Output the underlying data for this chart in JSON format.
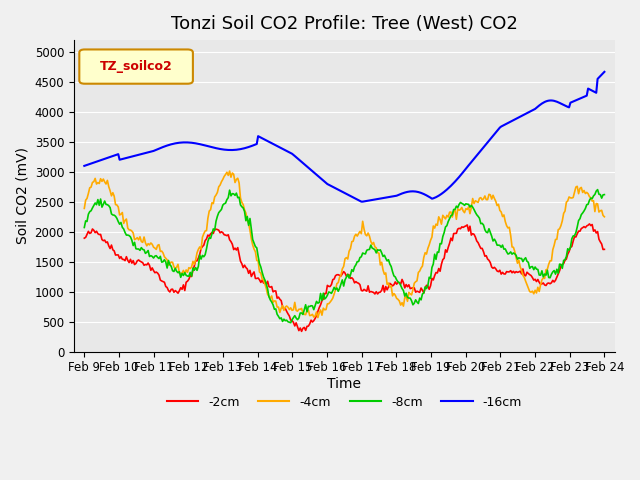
{
  "title": "Tonzi Soil CO2 Profile: Tree (West) CO2",
  "ylabel": "Soil CO2 (mV)",
  "xlabel": "Time",
  "xlabels": [
    "Feb 9",
    "Feb 10",
    "Feb 11",
    "Feb 12",
    "Feb 13",
    "Feb 14",
    "Feb 15",
    "Feb 16",
    "Feb 17",
    "Feb 18",
    "Feb 19",
    "Feb 20",
    "Feb 21",
    "Feb 22",
    "Feb 23",
    "Feb 24"
  ],
  "ylim": [
    0,
    5200
  ],
  "yticks": [
    0,
    500,
    1000,
    1500,
    2000,
    2500,
    3000,
    3500,
    4000,
    4500,
    5000
  ],
  "legend_label": "TZ_soilco2",
  "series_labels": [
    "-2cm",
    "-4cm",
    "-8cm",
    "-16cm"
  ],
  "series_colors": [
    "#ff0000",
    "#ffaa00",
    "#00cc00",
    "#0000ff"
  ],
  "bg_color": "#e8e8e8",
  "grid_color": "#ffffff",
  "title_fontsize": 13,
  "label_fontsize": 10,
  "tick_fontsize": 8.5
}
